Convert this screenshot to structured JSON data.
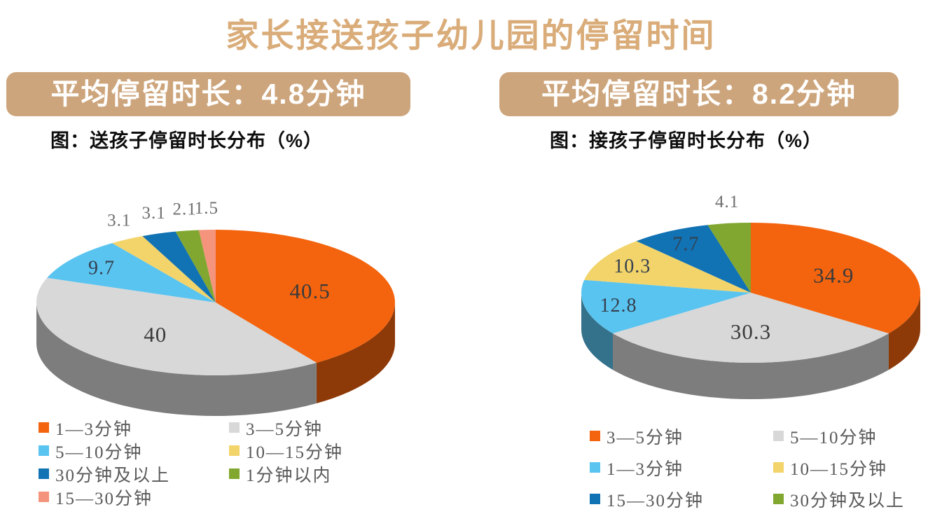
{
  "page": {
    "title": "家长接送孩子幼儿园的停留时间"
  },
  "theme": {
    "title_color": "#D9AC79",
    "banner_bg": "#CDA57C",
    "banner_text_color": "#FFFFFF",
    "page_bg": "#FFFFFF",
    "label_color_inside": "#3B3B3B",
    "label_color_outside": "#6E6E6E",
    "legend_text_color": "#595959"
  },
  "chart_data": [
    {
      "type": "pie",
      "style": "3d-pie",
      "banner": "平均停留时长：4.8分钟",
      "title": "图：送孩子停留时长分布（%）",
      "unit": "%",
      "labels_shown": "values on slices, small slices labeled outside top",
      "legend_position": "bottom, two columns",
      "slices": [
        {
          "label": "1—3分钟",
          "value": 40.5,
          "color": "#F4640E"
        },
        {
          "label": "3—5分钟",
          "value": 40,
          "color": "#D8D8D8"
        },
        {
          "label": "5—10分钟",
          "value": 9.7,
          "color": "#5AC4F0"
        },
        {
          "label": "10—15分钟",
          "value": 3.1,
          "color": "#F2D46B"
        },
        {
          "label": "30分钟及以上",
          "value": 3.1,
          "color": "#1172B4"
        },
        {
          "label": "1分钟以内",
          "value": 2.1,
          "color": "#82A730"
        },
        {
          "label": "15—30分钟",
          "value": 1.5,
          "color": "#F5947C"
        }
      ]
    },
    {
      "type": "pie",
      "style": "3d-pie",
      "banner": "平均停留时长：8.2分钟",
      "title": "图：接孩子停留时长分布（%）",
      "unit": "%",
      "labels_shown": "values on slices, small slices labeled outside top",
      "legend_position": "bottom, two columns",
      "slices": [
        {
          "label": "3—5分钟",
          "value": 34.9,
          "color": "#F4640E"
        },
        {
          "label": "5—10分钟",
          "value": 30.3,
          "color": "#D8D8D8"
        },
        {
          "label": "1—3分钟",
          "value": 12.8,
          "color": "#5AC4F0"
        },
        {
          "label": "10—15分钟",
          "value": 10.3,
          "color": "#F2D46B"
        },
        {
          "label": "15—30分钟",
          "value": 7.7,
          "color": "#1172B4"
        },
        {
          "label": "30分钟及以上",
          "value": 4.1,
          "color": "#82A730"
        }
      ]
    }
  ]
}
